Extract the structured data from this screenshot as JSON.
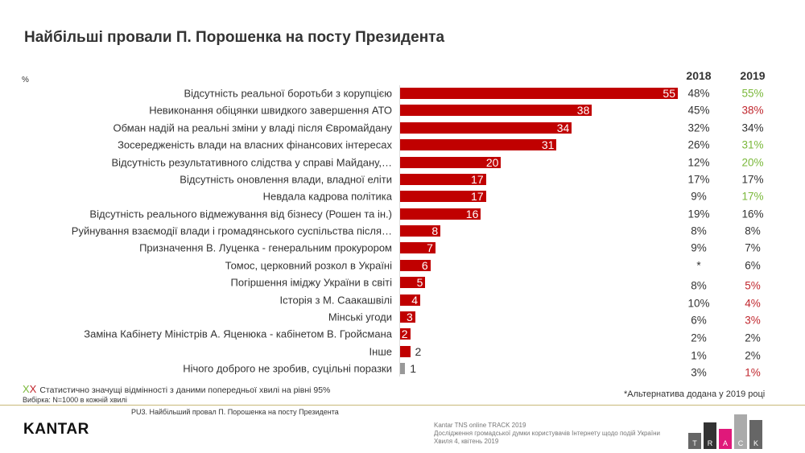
{
  "title": "Найбільші провали П. Порошенка на посту Президента",
  "unit": "%",
  "colors": {
    "bar": "#c00000",
    "bar_other": "#999999",
    "up": "#7ab83a",
    "down": "#c0262d",
    "neutral": "#333333"
  },
  "chart_data": {
    "type": "bar",
    "orientation": "horizontal",
    "xlim": [
      0,
      55
    ],
    "categories": [
      "Відсутність реальної боротьби з корупцією",
      "Невиконання обіцянки швидкого завершення АТО",
      "Обман надій на реальні зміни у владі після Євромайдану",
      "Зосередженість влади на власних фінансових інтересах",
      "Відсутність результативного слідства у справі Майдану,…",
      "Відсутність оновлення влади, владної еліти",
      "Невдала кадрова політика ",
      "Відсутність реального відмежування від бізнесу (Рошен та ін.)",
      "Руйнування взаємодії влади і громадянського суспільства після…",
      "Призначення В. Луценка - генеральним прокурором",
      "Томос, церковний розкол в Україні",
      "Погіршення іміджу України в світі",
      "Історія з М. Саакашвілі",
      "Мінські угоди",
      "Заміна Кабінету Міністрів А. Яценюка - кабінетом В. Гройсмана",
      "Інше",
      "Нічого доброго не зробив, суцільні поразки"
    ],
    "values": [
      55,
      38,
      34,
      31,
      20,
      17,
      17,
      16,
      8,
      7,
      6,
      5,
      4,
      3,
      2,
      2,
      1
    ],
    "value_labels": [
      "55",
      "38",
      "34",
      "31",
      "20",
      "17",
      "17",
      "16",
      "8",
      "7",
      "6",
      "5",
      "4",
      "3",
      "2",
      "2",
      "1"
    ],
    "table": {
      "headers": [
        "2018",
        "2019"
      ],
      "y2018": [
        "48%",
        "45%",
        "32%",
        "26%",
        "12%",
        "17%",
        "9%",
        "19%",
        "8%",
        "9%",
        "*",
        "8%",
        "10%",
        "6%",
        "2%",
        "1%",
        "3%"
      ],
      "y2019": [
        "55%",
        "38%",
        "34%",
        "31%",
        "20%",
        "17%",
        "17%",
        "16%",
        "8%",
        "7%",
        "6%",
        "5%",
        "4%",
        "3%",
        "2%",
        "2%",
        "1%"
      ],
      "y2019_sig": [
        "up",
        "down",
        "neutral",
        "up",
        "up",
        "neutral",
        "up",
        "neutral",
        "neutral",
        "neutral",
        "neutral",
        "down",
        "down",
        "down",
        "neutral",
        "neutral",
        "down"
      ]
    }
  },
  "footer": {
    "legend_mark": "XX",
    "legend_text": "Статистично  значущі відмінності з даними попередньої  хвилі на рівні 95%",
    "sample": "Вибірка: N=1000 в кожній хвилі",
    "note_star": "*",
    "note": "Альтернатива  додана у 2019 році",
    "question": "PU3. Найбільший провал П. Порошенка на посту Президента",
    "brand": "KANTAR",
    "source1": "Kantar TNS online TRACK 2019",
    "source2": "Дослідження громадської думки користувачів Інтернету щодо подій України",
    "source3": "Хвиля 4, квітень 2019",
    "track_letters": [
      "T",
      "R",
      "A",
      "C",
      "K"
    ]
  }
}
